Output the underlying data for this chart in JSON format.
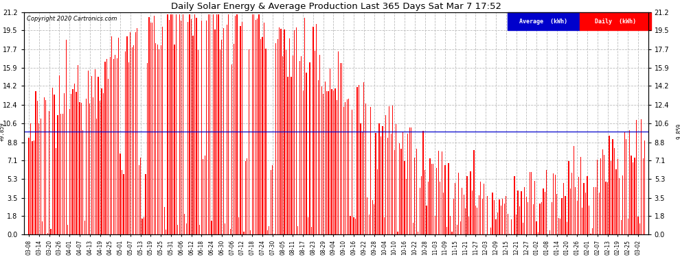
{
  "title": "Daily Solar Energy & Average Production Last 365 Days Sat Mar 7 17:52",
  "copyright": "Copyright 2020 Cartronics.com",
  "average_value": 9.859,
  "average_label": "9.859",
  "ylim": [
    0.0,
    21.2
  ],
  "yticks": [
    0.0,
    1.8,
    3.5,
    5.3,
    7.1,
    8.8,
    10.6,
    12.4,
    14.2,
    15.9,
    17.7,
    19.5,
    21.2
  ],
  "bar_color": "#ff0000",
  "average_line_color": "#0000cc",
  "background_color": "#ffffff",
  "grid_color": "#bbbbbb",
  "legend_avg_bg": "#0000cc",
  "legend_daily_bg": "#ff0000",
  "legend_text_color": "#ffffff",
  "num_bars": 365,
  "bar_width": 0.5,
  "x_tick_labels": [
    "03-08",
    "03-14",
    "03-20",
    "03-26",
    "04-01",
    "04-07",
    "04-13",
    "04-19",
    "04-25",
    "05-01",
    "05-07",
    "05-13",
    "05-19",
    "05-25",
    "05-31",
    "06-06",
    "06-12",
    "06-18",
    "06-24",
    "06-30",
    "07-06",
    "07-12",
    "07-18",
    "07-24",
    "07-30",
    "08-05",
    "08-11",
    "08-17",
    "08-23",
    "08-29",
    "09-04",
    "09-10",
    "09-16",
    "09-22",
    "09-28",
    "10-04",
    "10-10",
    "10-16",
    "10-22",
    "10-28",
    "11-03",
    "11-09",
    "11-15",
    "11-21",
    "11-27",
    "12-03",
    "12-09",
    "12-15",
    "12-21",
    "12-27",
    "01-02",
    "01-08",
    "01-14",
    "01-20",
    "01-26",
    "02-01",
    "02-07",
    "02-13",
    "02-19",
    "02-25",
    "03-02"
  ],
  "seed": 12345
}
